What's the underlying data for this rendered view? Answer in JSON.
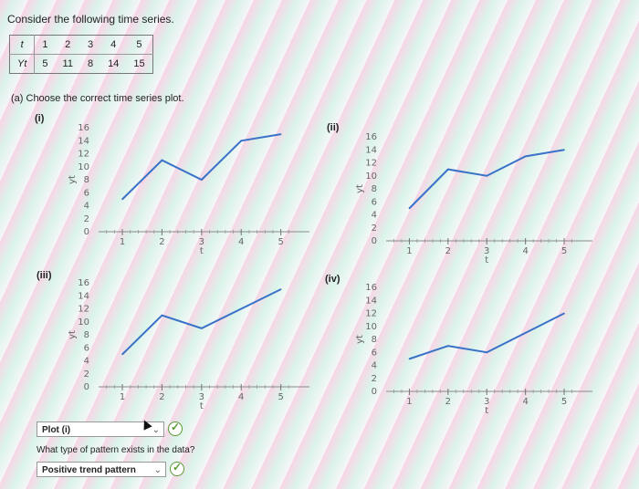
{
  "intro": "Consider the following time series.",
  "table": {
    "t_label": "t",
    "y_label": "Yt",
    "t_values": [
      "1",
      "2",
      "3",
      "4",
      "5"
    ],
    "y_values": [
      "5",
      "11",
      "8",
      "14",
      "15"
    ]
  },
  "question_a": "(a) Choose the correct time series plot.",
  "plots": [
    {
      "label": "(i)"
    },
    {
      "label": "(ii)"
    },
    {
      "label": "(iii)"
    },
    {
      "label": "(iv)"
    }
  ],
  "axis": {
    "ylabel": "yt",
    "xlabel": "t",
    "yticks": [
      "0",
      "2",
      "4",
      "6",
      "8",
      "10",
      "12",
      "14",
      "16"
    ],
    "xticks": [
      "1",
      "2",
      "3",
      "4",
      "5"
    ]
  },
  "answer_a": "Plot (i)",
  "question_b": "What type of pattern exists in the data?",
  "answer_b": "Positive trend pattern",
  "line_color": "#3a72c8",
  "check_color": "#5a9a32",
  "chart_data": [
    {
      "type": "line",
      "title": "(i)",
      "x": [
        1,
        2,
        3,
        4,
        5
      ],
      "values": [
        5,
        11,
        8,
        14,
        15
      ],
      "xlabel": "t",
      "ylabel": "yt",
      "ylim": [
        0,
        16
      ]
    },
    {
      "type": "line",
      "title": "(ii)",
      "x": [
        1,
        2,
        3,
        4,
        5
      ],
      "values": [
        5,
        11,
        10,
        13,
        14
      ],
      "xlabel": "t",
      "ylabel": "yt",
      "ylim": [
        0,
        16
      ]
    },
    {
      "type": "line",
      "title": "(iii)",
      "x": [
        1,
        2,
        3,
        4,
        5
      ],
      "values": [
        5,
        11,
        9,
        12,
        15
      ],
      "xlabel": "t",
      "ylabel": "yt",
      "ylim": [
        0,
        16
      ]
    },
    {
      "type": "line",
      "title": "(iv)",
      "x": [
        1,
        2,
        3,
        4,
        5
      ],
      "values": [
        5,
        7,
        6,
        9,
        12
      ],
      "xlabel": "t",
      "ylabel": "yt",
      "ylim": [
        0,
        16
      ]
    }
  ]
}
